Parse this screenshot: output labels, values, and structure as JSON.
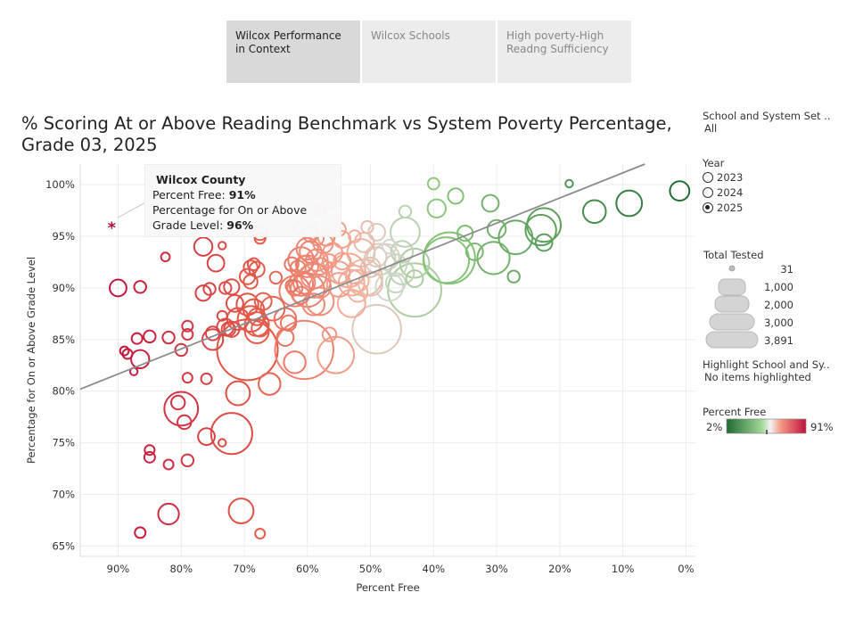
{
  "tabs": [
    {
      "label": "Wilcox Performance in Context"
    },
    {
      "label": "Wilcox Schools"
    },
    {
      "label": "High poverty-High Readng Sufficiency"
    }
  ],
  "title": "% Scoring At or Above Reading Benchmark vs System Poverty Percentage, Grade 03, 2025",
  "filters": {
    "school_set_label": "School and System Set ..",
    "school_set_value": "All",
    "year_label": "Year",
    "years": [
      "2023",
      "2024",
      "2025"
    ],
    "selected_year": "2025",
    "size_legend_title": "Total Tested",
    "size_values": [
      "31",
      "1,000",
      "2,000",
      "3,000",
      "3,891"
    ],
    "highlight_label": "Highlight School and Sy..",
    "highlight_value": "No items highlighted",
    "color_legend_title": "Percent Free",
    "color_min": "2%",
    "color_max": "91%"
  },
  "tooltip": {
    "name": "Wilcox County",
    "line1_label": "Percent Free: ",
    "line1_value": "91%",
    "line2_label": "Percentage for On or Above",
    "line3_label": "Grade Level: ",
    "line3_value": "96%"
  },
  "colors": {
    "low_poverty": "#2e7d32",
    "mid": "#e8e8e8",
    "high_poverty": "#c2123c",
    "highlight_mark": "#b0103c",
    "trend": "#8c8c8c"
  },
  "chart_data": {
    "type": "scatter",
    "title": "% Scoring At or Above Reading Benchmark vs System Poverty Percentage, Grade 03, 2025",
    "xlabel": "Percent Free",
    "ylabel": "Percentage for On or Above Grade Level",
    "xlim": [
      96,
      -1.5
    ],
    "ylim": [
      64,
      102
    ],
    "x_reversed": true,
    "x_ticks": [
      90,
      80,
      70,
      60,
      50,
      40,
      30,
      20,
      10,
      0
    ],
    "x_tick_labels": [
      "90%",
      "80%",
      "70%",
      "60%",
      "50%",
      "40%",
      "30%",
      "20%",
      "10%",
      "0%"
    ],
    "y_ticks": [
      65,
      70,
      75,
      80,
      85,
      90,
      95,
      100
    ],
    "y_tick_labels": [
      "65%",
      "70%",
      "75%",
      "80%",
      "85%",
      "90%",
      "95%",
      "100%"
    ],
    "grid": true,
    "trend_line": [
      [
        96,
        80.2
      ],
      [
        6.5,
        102
      ]
    ],
    "highlight": {
      "name": "Wilcox County",
      "x": 91,
      "y": 96
    },
    "points": [
      [
        1,
        99.4,
        400
      ],
      [
        9,
        98.2,
        700
      ],
      [
        14.5,
        97.4,
        550
      ],
      [
        18.5,
        100.1,
        60
      ],
      [
        22.5,
        96.1,
        1200
      ],
      [
        23,
        95.6,
        1000
      ],
      [
        22.5,
        94.4,
        300
      ],
      [
        27,
        94.9,
        1200
      ],
      [
        27.3,
        91.1,
        150
      ],
      [
        30,
        95.7,
        350
      ],
      [
        30.5,
        92.9,
        1100
      ],
      [
        31,
        98.2,
        300
      ],
      [
        33.5,
        93.5,
        300
      ],
      [
        35,
        95.3,
        250
      ],
      [
        36.5,
        98.9,
        250
      ],
      [
        37.5,
        92.9,
        2800
      ],
      [
        38,
        92.7,
        2200
      ],
      [
        39.5,
        97.7,
        350
      ],
      [
        40,
        100.1,
        140
      ],
      [
        43,
        89.8,
        3000
      ],
      [
        43,
        92.4,
        900
      ],
      [
        43,
        90.9,
        300
      ],
      [
        44.5,
        97.4,
        150
      ],
      [
        44.5,
        95.4,
        900
      ],
      [
        45,
        93.5,
        500
      ],
      [
        45,
        91.5,
        600
      ],
      [
        46,
        92.2,
        500
      ],
      [
        46,
        90.5,
        400
      ],
      [
        47,
        94.0,
        200
      ],
      [
        47,
        90.1,
        800
      ],
      [
        47.5,
        93.0,
        700
      ],
      [
        48.5,
        92.8,
        1000
      ],
      [
        49,
        93.0,
        400
      ],
      [
        49,
        86.0,
        2500
      ],
      [
        49,
        95.4,
        300
      ],
      [
        50,
        90.4,
        600
      ],
      [
        50,
        92.0,
        400
      ],
      [
        50.5,
        95.9,
        150
      ],
      [
        51,
        94.4,
        400
      ],
      [
        51,
        91.0,
        1400
      ],
      [
        51.5,
        93.4,
        800
      ],
      [
        52,
        90.7,
        500
      ],
      [
        52,
        89.6,
        400
      ],
      [
        52.5,
        95.0,
        150
      ],
      [
        52.5,
        91.3,
        350
      ],
      [
        53,
        88.5,
        800
      ],
      [
        53,
        90.5,
        700
      ],
      [
        53.5,
        91.7,
        1200
      ],
      [
        54.5,
        94.7,
        300
      ],
      [
        54.5,
        92.6,
        300
      ],
      [
        55,
        95.7,
        200
      ],
      [
        55,
        90.3,
        600
      ],
      [
        55,
        91.5,
        500
      ],
      [
        55.5,
        83.5,
        1400
      ],
      [
        56,
        93.4,
        400
      ],
      [
        56.5,
        92.6,
        200
      ],
      [
        56.5,
        85.5,
        200
      ],
      [
        57,
        96.6,
        700
      ],
      [
        57,
        94.9,
        300
      ],
      [
        57,
        92.0,
        150
      ],
      [
        57.5,
        94.3,
        400
      ],
      [
        58,
        88.7,
        800
      ],
      [
        58,
        90.1,
        500
      ],
      [
        58,
        92.1,
        300
      ],
      [
        58,
        97.5,
        120
      ],
      [
        58.5,
        92.7,
        500
      ],
      [
        58.5,
        94.8,
        200
      ],
      [
        59,
        90.7,
        1200
      ],
      [
        59,
        88.4,
        500
      ],
      [
        59,
        91.2,
        700
      ],
      [
        59.5,
        93.5,
        500
      ],
      [
        59.5,
        95.2,
        250
      ],
      [
        60,
        89.8,
        1200
      ],
      [
        60,
        92.1,
        500
      ],
      [
        60,
        93.8,
        500
      ],
      [
        60.5,
        90.5,
        500
      ],
      [
        60.5,
        84.0,
        3600
      ],
      [
        60.5,
        92.3,
        300
      ],
      [
        61,
        90.4,
        600
      ],
      [
        61,
        89.3,
        300
      ],
      [
        61,
        92.7,
        700
      ],
      [
        61.5,
        91.9,
        250
      ],
      [
        61.5,
        95.8,
        100
      ],
      [
        62,
        89.7,
        1000
      ],
      [
        62,
        90.0,
        250
      ],
      [
        62,
        82.8,
        500
      ],
      [
        62.5,
        92.3,
        200
      ],
      [
        62.5,
        90.2,
        150
      ],
      [
        63,
        86.6,
        250
      ],
      [
        63.5,
        85.2,
        300
      ],
      [
        63.5,
        87.0,
        500
      ],
      [
        65,
        91.0,
        150
      ],
      [
        65.5,
        88.0,
        600
      ],
      [
        66,
        80.7,
        500
      ],
      [
        67,
        88.7,
        300
      ],
      [
        67.5,
        86.1,
        300
      ],
      [
        67.5,
        95.3,
        200
      ],
      [
        67.5,
        94.8,
        120
      ],
      [
        67.5,
        66.2,
        100
      ],
      [
        68,
        86.5,
        600
      ],
      [
        68,
        85.8,
        600
      ],
      [
        68,
        91.8,
        250
      ],
      [
        68,
        87.2,
        300
      ],
      [
        68.5,
        87.9,
        450
      ],
      [
        68.5,
        92.3,
        150
      ],
      [
        69,
        90.6,
        200
      ],
      [
        69,
        92.0,
        200
      ],
      [
        69,
        87.0,
        700
      ],
      [
        69.5,
        84.0,
        3891
      ],
      [
        69.5,
        88.4,
        500
      ],
      [
        69.5,
        91.1,
        250
      ],
      [
        70.5,
        68.4,
        650
      ],
      [
        71,
        79.8,
        600
      ],
      [
        71,
        87.0,
        500
      ],
      [
        71.5,
        88.5,
        300
      ],
      [
        72,
        90.1,
        250
      ],
      [
        72,
        86.0,
        250
      ],
      [
        72,
        75.9,
        1800
      ],
      [
        72.5,
        86.0,
        200
      ],
      [
        73,
        90.0,
        150
      ],
      [
        73,
        86.2,
        300
      ],
      [
        73.5,
        87.3,
        100
      ],
      [
        73.5,
        94.1,
        60
      ],
      [
        73.5,
        75.0,
        60
      ],
      [
        74.5,
        92.4,
        300
      ],
      [
        75,
        85.0,
        450
      ],
      [
        75,
        85.6,
        200
      ],
      [
        75.5,
        89.9,
        150
      ],
      [
        76,
        81.2,
        120
      ],
      [
        76,
        75.6,
        300
      ],
      [
        76.5,
        89.5,
        250
      ],
      [
        76.5,
        94.0,
        350
      ],
      [
        79,
        73.3,
        150
      ],
      [
        79,
        86.3,
        120
      ],
      [
        79,
        85.5,
        120
      ],
      [
        79,
        81.3,
        100
      ],
      [
        79.5,
        77.0,
        200
      ],
      [
        80,
        84.0,
        150
      ],
      [
        80,
        78.3,
        1200
      ],
      [
        80.5,
        78.9,
        200
      ],
      [
        82,
        72.9,
        100
      ],
      [
        82,
        68.1,
        450
      ],
      [
        82,
        85.2,
        150
      ],
      [
        82.5,
        93.0,
        80
      ],
      [
        85,
        73.6,
        120
      ],
      [
        85,
        74.3,
        100
      ],
      [
        85,
        85.3,
        150
      ],
      [
        86.5,
        90.1,
        150
      ],
      [
        86.5,
        83.1,
        350
      ],
      [
        86.5,
        66.3,
        120
      ],
      [
        87,
        85.1,
        120
      ],
      [
        87.5,
        81.9,
        60
      ],
      [
        88.5,
        83.6,
        100
      ],
      [
        89,
        83.9,
        80
      ],
      [
        90,
        90.0,
        300
      ]
    ]
  }
}
